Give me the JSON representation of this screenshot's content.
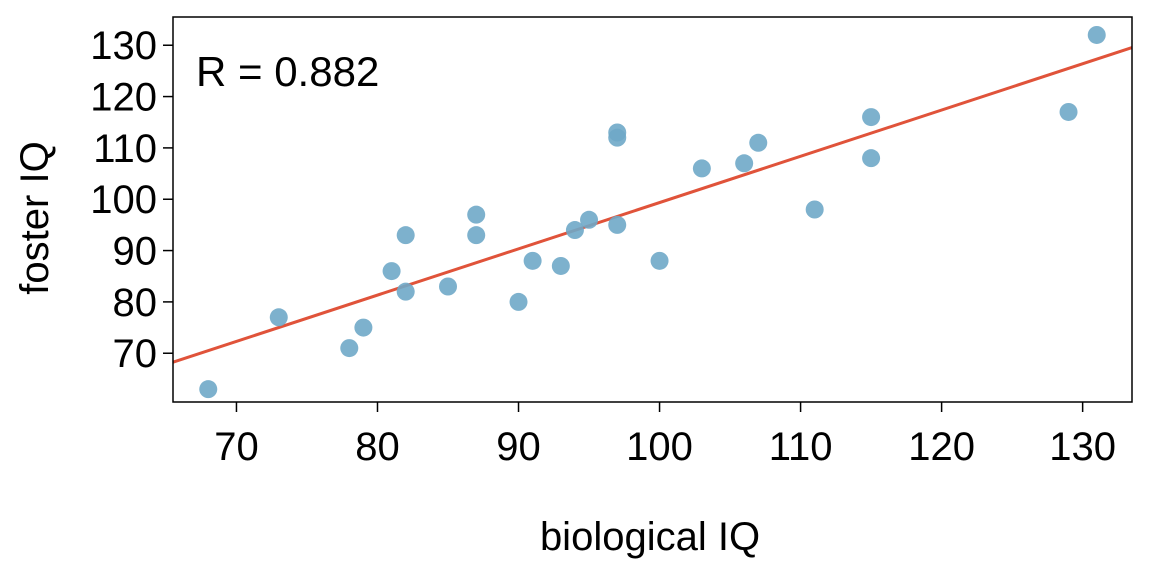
{
  "chart_data": {
    "type": "scatter",
    "title": "",
    "xlabel": "biological IQ",
    "ylabel": "foster IQ",
    "xlim": [
      65.5,
      133.5
    ],
    "ylim": [
      60.5,
      135.5
    ],
    "x_ticks": [
      70,
      80,
      90,
      100,
      110,
      120,
      130
    ],
    "y_ticks": [
      70,
      80,
      90,
      100,
      110,
      120,
      130
    ],
    "grid": false,
    "annotation": "R =  0.882",
    "point_color": "#6fa8c8",
    "line_color": "#e0533a",
    "series": [
      {
        "points": [
          {
            "x": 68,
            "y": 63
          },
          {
            "x": 73,
            "y": 77
          },
          {
            "x": 78,
            "y": 71
          },
          {
            "x": 79,
            "y": 75
          },
          {
            "x": 81,
            "y": 86
          },
          {
            "x": 82,
            "y": 82
          },
          {
            "x": 82,
            "y": 93
          },
          {
            "x": 85,
            "y": 83
          },
          {
            "x": 87,
            "y": 93
          },
          {
            "x": 87,
            "y": 97
          },
          {
            "x": 90,
            "y": 80
          },
          {
            "x": 91,
            "y": 88
          },
          {
            "x": 93,
            "y": 87
          },
          {
            "x": 94,
            "y": 94
          },
          {
            "x": 95,
            "y": 96
          },
          {
            "x": 97,
            "y": 95
          },
          {
            "x": 97,
            "y": 112
          },
          {
            "x": 97,
            "y": 113
          },
          {
            "x": 100,
            "y": 88
          },
          {
            "x": 103,
            "y": 106
          },
          {
            "x": 106,
            "y": 107
          },
          {
            "x": 107,
            "y": 111
          },
          {
            "x": 111,
            "y": 98
          },
          {
            "x": 115,
            "y": 108
          },
          {
            "x": 115,
            "y": 116
          },
          {
            "x": 129,
            "y": 117
          },
          {
            "x": 131,
            "y": 132
          }
        ]
      }
    ],
    "regression_line": {
      "intercept": 9.21,
      "slope": 0.9014
    }
  }
}
